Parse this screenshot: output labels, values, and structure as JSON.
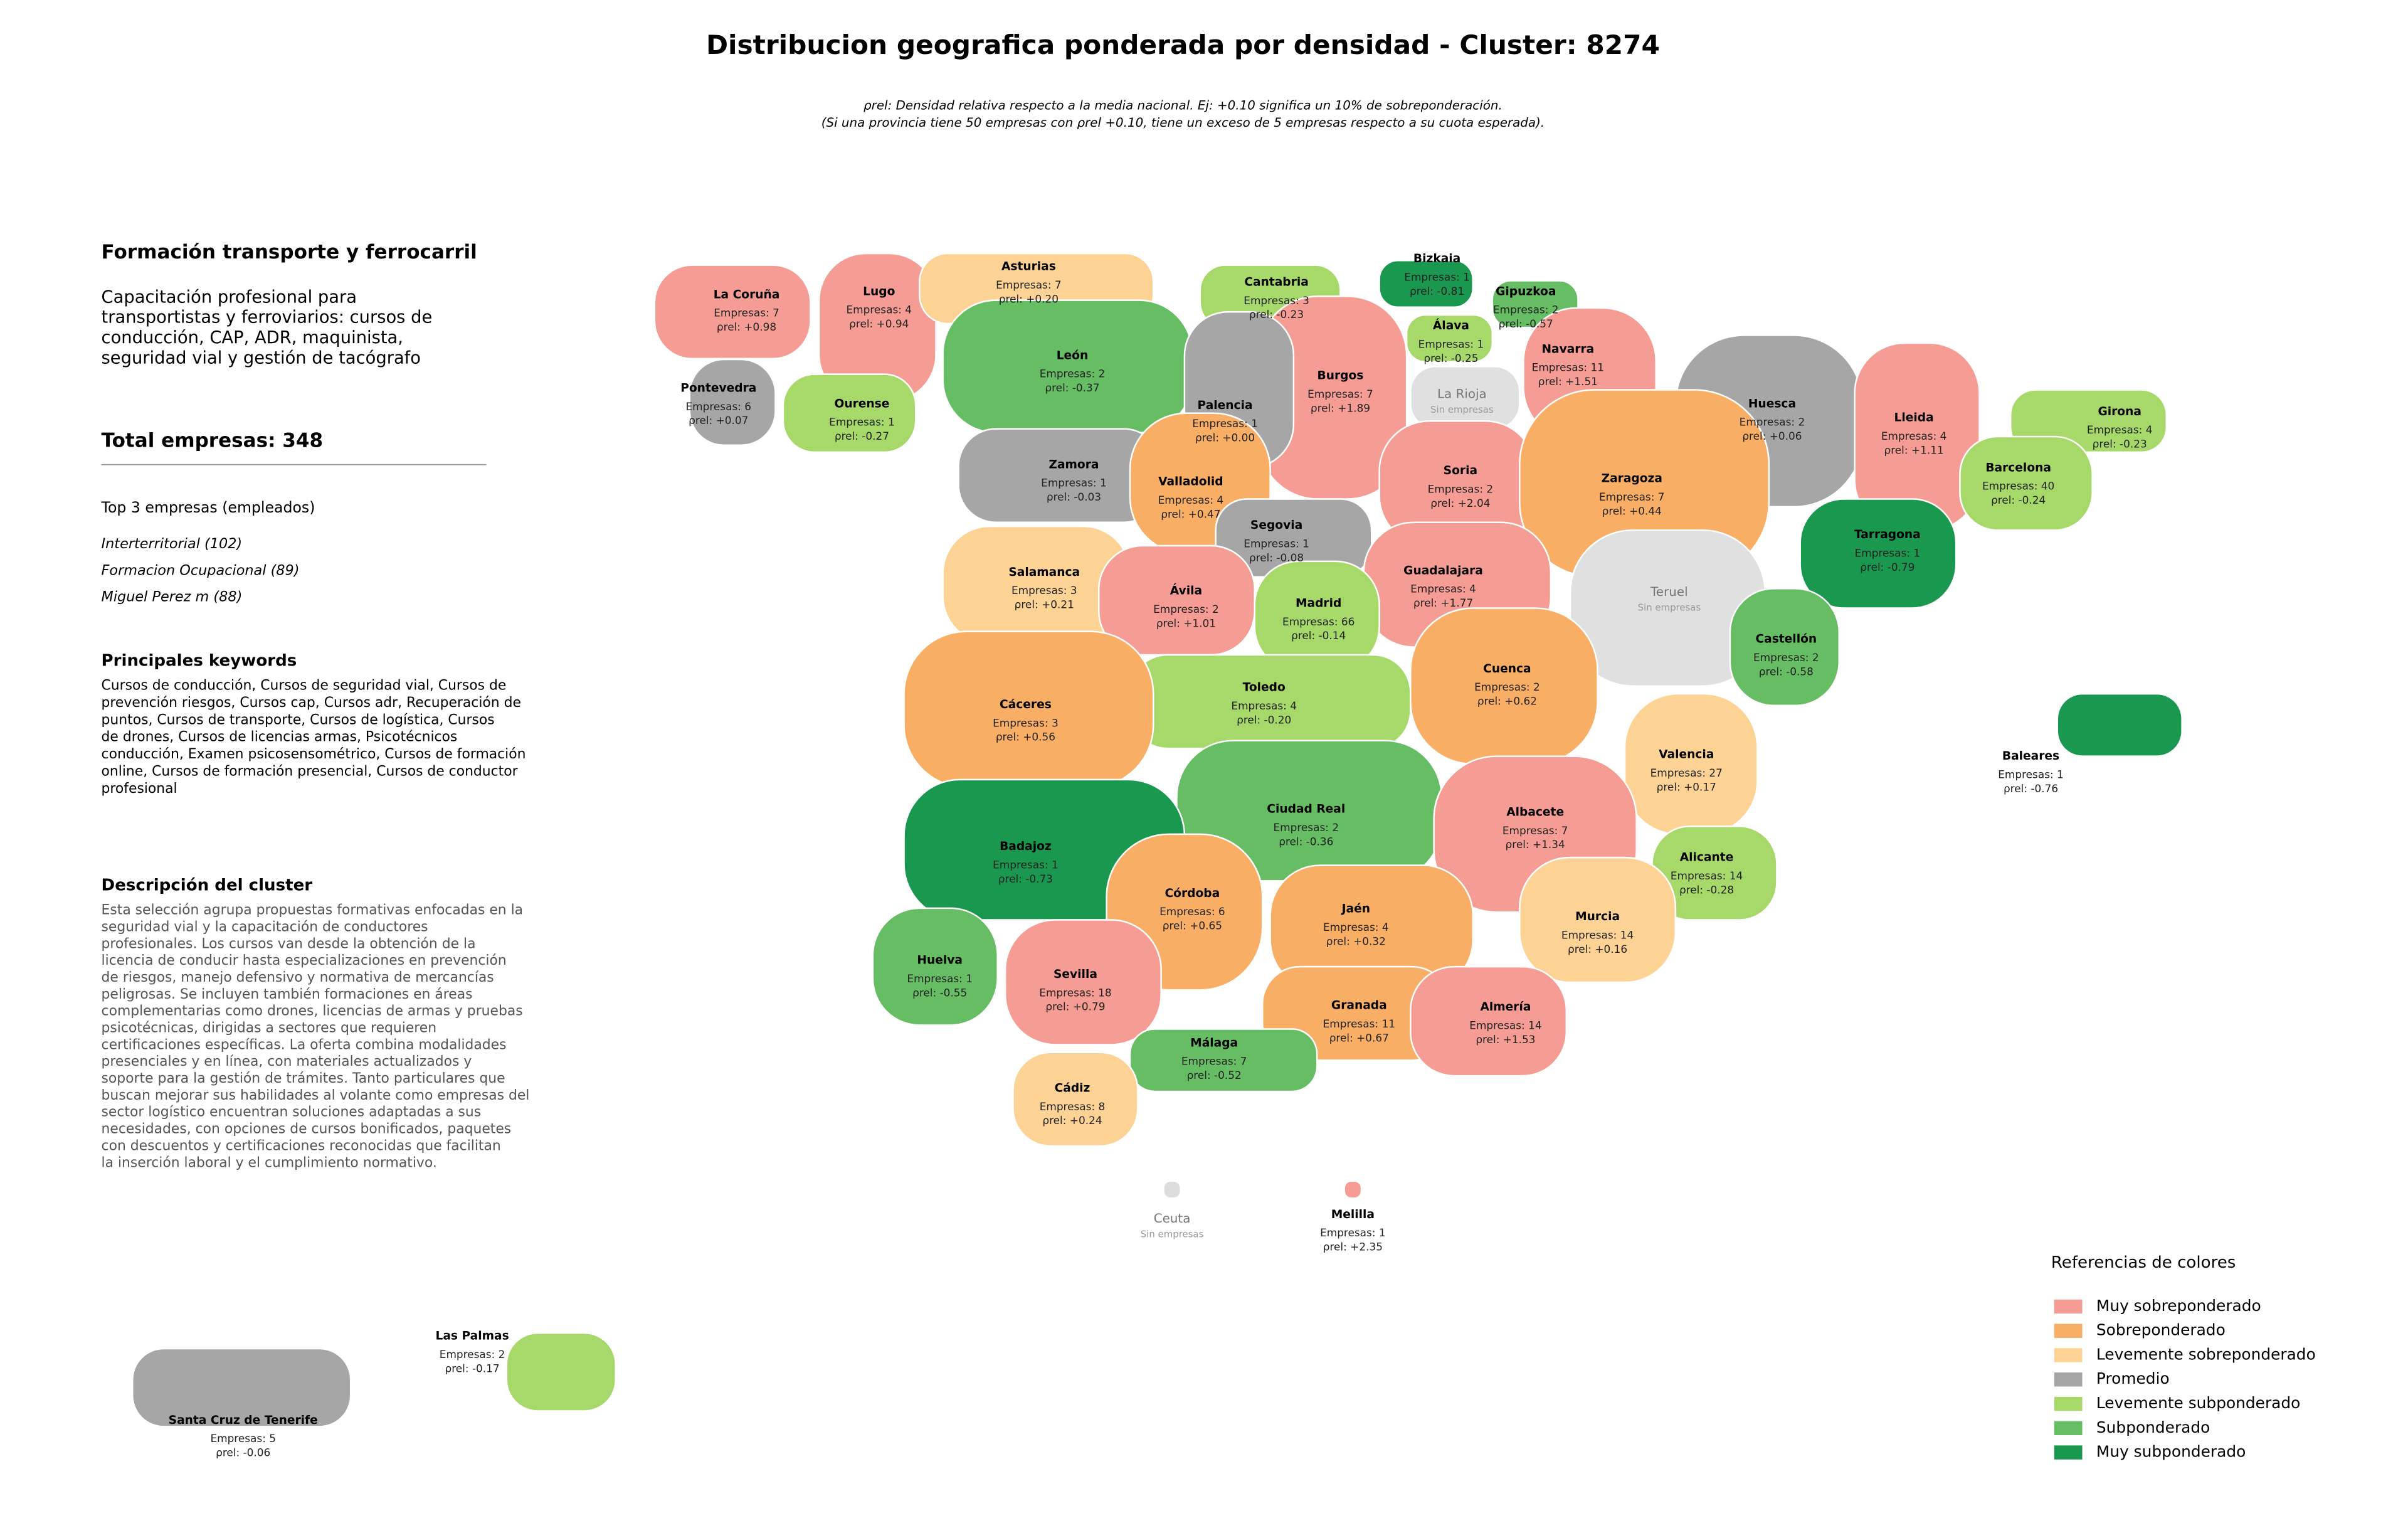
{
  "header": {
    "title": "Distribucion geografica ponderada por densidad - Cluster: 8274",
    "subtitle_lines": [
      "ρrel: Densidad relativa respecto a la media nacional. Ej: +0.10 significa un 10% de sobreponderación.",
      "(Si una provincia tiene 50 empresas con ρrel +0.10, tiene un exceso de 5 empresas respecto a su cuota esperada)."
    ]
  },
  "panel": {
    "cluster_name": "Formación transporte y ferrocarril",
    "cluster_summary_lines": [
      "Capacitación profesional para",
      "transportistas y ferroviarios: cursos de",
      "conducción, CAP, ADR, maquinista,",
      "seguridad vial y gestión de tacógrafo"
    ],
    "total": "Total empresas: 348",
    "top_title": "Top 3 empresas (empleados)",
    "top_items": [
      "Interterritorial (102)",
      "Formacion Ocupacional (89)",
      "Miguel Perez m (88)"
    ],
    "keywords_title": "Principales keywords",
    "keywords_lines": [
      "Cursos de conducción, Cursos de seguridad vial, Cursos de",
      "prevención riesgos, Cursos cap, Cursos adr, Recuperación de",
      "puntos, Cursos de transporte, Cursos de logística, Cursos",
      "de drones, Cursos de licencias armas, Psicotécnicos",
      "conducción, Examen psicosensométrico, Cursos de formación",
      "online, Cursos de formación presencial, Cursos de conductor",
      "profesional"
    ],
    "description_title": "Descripción del cluster",
    "description_lines": [
      "Esta selección agrupa propuestas formativas enfocadas en la",
      "seguridad vial y la capacitación de conductores",
      "profesionales. Los cursos van desde la obtención de la",
      "licencia de conducir hasta especializaciones en prevención",
      "de riesgos, manejo defensivo y normativa de mercancías",
      "peligrosas. Se incluyen también formaciones en áreas",
      "complementarias como drones, licencias de armas y pruebas",
      "psicotécnicas, dirigidas a sectores que requieren",
      "certificaciones específicas. La oferta combina modalidades",
      "presenciales y en línea, con materiales actualizados y",
      "soporte para la gestión de trámites. Tanto particulares que",
      "buscan mejorar sus habilidades al volante como empresas del",
      "sector logístico encuentran soluciones adaptadas a sus",
      "necesidades, con opciones de cursos bonificados, paquetes",
      "con descuentos y certificaciones reconocidas que facilitan",
      "la inserción laboral y el cumplimiento normativo."
    ]
  },
  "legend": {
    "title": "Referencias de colores",
    "items": [
      {
        "name": "Muy sobreponderado",
        "color": "#f59d94"
      },
      {
        "name": "Sobreponderado",
        "color": "#f9ae66"
      },
      {
        "name": "Levemente sobreponderado",
        "color": "#fdd395"
      },
      {
        "name": "Promedio",
        "color": "#a6a6a6"
      },
      {
        "name": "Levemente subponderado",
        "color": "#a6d96a"
      },
      {
        "name": "Subponderado",
        "color": "#66bd63"
      },
      {
        "name": "Muy subponderado",
        "color": "#1a9850"
      }
    ]
  },
  "provinces": [
    {
      "name": "La Coruña",
      "empresas": "Empresas: 7",
      "rho": "ρrel: +0.98",
      "color": "#f59d94"
    },
    {
      "name": "Lugo",
      "empresas": "Empresas: 4",
      "rho": "ρrel: +0.94",
      "color": "#f59d94"
    },
    {
      "name": "Asturias",
      "empresas": "Empresas: 7",
      "rho": "ρrel: +0.20",
      "color": "#fdd395"
    },
    {
      "name": "Cantabria",
      "empresas": "Empresas: 3",
      "rho": "ρrel: -0.23",
      "color": "#a6d96a"
    },
    {
      "name": "Bizkaia",
      "empresas": "Empresas: 1",
      "rho": "ρrel: -0.81",
      "color": "#1a9850"
    },
    {
      "name": "Gipuzkoa",
      "empresas": "Empresas: 2",
      "rho": "ρrel: -0.57",
      "color": "#66bd63"
    },
    {
      "name": "Álava",
      "empresas": "Empresas: 1",
      "rho": "ρrel: -0.25",
      "color": "#a6d96a"
    },
    {
      "name": "Navarra",
      "empresas": "Empresas: 11",
      "rho": "ρrel: +1.51",
      "color": "#f59d94"
    },
    {
      "name": "Pontevedra",
      "empresas": "Empresas: 6",
      "rho": "ρrel: +0.07",
      "color": "#a6a6a6"
    },
    {
      "name": "Ourense",
      "empresas": "Empresas: 1",
      "rho": "ρrel: -0.27",
      "color": "#a6d96a"
    },
    {
      "name": "León",
      "empresas": "Empresas: 2",
      "rho": "ρrel: -0.37",
      "color": "#66bd63"
    },
    {
      "name": "Burgos",
      "empresas": "Empresas: 7",
      "rho": "ρrel: +1.89",
      "color": "#f59d94"
    },
    {
      "name": "La Rioja",
      "note": "Sin empresas",
      "color": "#e0e0e0"
    },
    {
      "name": "Palencia",
      "empresas": "Empresas: 1",
      "rho": "ρrel: +0.00",
      "color": "#a6a6a6"
    },
    {
      "name": "Huesca",
      "empresas": "Empresas: 2",
      "rho": "ρrel: +0.06",
      "color": "#a6a6a6"
    },
    {
      "name": "Lleida",
      "empresas": "Empresas: 4",
      "rho": "ρrel: +1.11",
      "color": "#f59d94"
    },
    {
      "name": "Girona",
      "empresas": "Empresas: 4",
      "rho": "ρrel: -0.23",
      "color": "#a6d96a"
    },
    {
      "name": "Barcelona",
      "empresas": "Empresas: 40",
      "rho": "ρrel: -0.24",
      "color": "#a6d96a"
    },
    {
      "name": "Zamora",
      "empresas": "Empresas: 1",
      "rho": "ρrel: -0.03",
      "color": "#a6a6a6"
    },
    {
      "name": "Valladolid",
      "empresas": "Empresas: 4",
      "rho": "ρrel: +0.47",
      "color": "#f9ae66"
    },
    {
      "name": "Soria",
      "empresas": "Empresas: 2",
      "rho": "ρrel: +2.04",
      "color": "#f59d94"
    },
    {
      "name": "Zaragoza",
      "empresas": "Empresas: 7",
      "rho": "ρrel: +0.44",
      "color": "#f9ae66"
    },
    {
      "name": "Segovia",
      "empresas": "Empresas: 1",
      "rho": "ρrel: -0.08",
      "color": "#a6a6a6"
    },
    {
      "name": "Tarragona",
      "empresas": "Empresas: 1",
      "rho": "ρrel: -0.79",
      "color": "#1a9850"
    },
    {
      "name": "Salamanca",
      "empresas": "Empresas: 3",
      "rho": "ρrel: +0.21",
      "color": "#fdd395"
    },
    {
      "name": "Guadalajara",
      "empresas": "Empresas: 4",
      "rho": "ρrel: +1.77",
      "color": "#f59d94"
    },
    {
      "name": "Ávila",
      "empresas": "Empresas: 2",
      "rho": "ρrel: +1.01",
      "color": "#f59d94"
    },
    {
      "name": "Madrid",
      "empresas": "Empresas: 66",
      "rho": "ρrel: -0.14",
      "color": "#a6d96a"
    },
    {
      "name": "Teruel",
      "note": "Sin empresas",
      "color": "#e0e0e0"
    },
    {
      "name": "Castellón",
      "empresas": "Empresas: 2",
      "rho": "ρrel: -0.58",
      "color": "#66bd63"
    },
    {
      "name": "Cuenca",
      "empresas": "Empresas: 2",
      "rho": "ρrel: +0.62",
      "color": "#f9ae66"
    },
    {
      "name": "Toledo",
      "empresas": "Empresas: 4",
      "rho": "ρrel: -0.20",
      "color": "#a6d96a"
    },
    {
      "name": "Cáceres",
      "empresas": "Empresas: 3",
      "rho": "ρrel: +0.56",
      "color": "#f9ae66"
    },
    {
      "name": "Valencia",
      "empresas": "Empresas: 27",
      "rho": "ρrel: +0.17",
      "color": "#fdd395"
    },
    {
      "name": "Baleares",
      "empresas": "Empresas: 1",
      "rho": "ρrel: -0.76",
      "color": "#1a9850"
    },
    {
      "name": "Ciudad Real",
      "empresas": "Empresas: 2",
      "rho": "ρrel: -0.36",
      "color": "#66bd63"
    },
    {
      "name": "Albacete",
      "empresas": "Empresas: 7",
      "rho": "ρrel: +1.34",
      "color": "#f59d94"
    },
    {
      "name": "Badajoz",
      "empresas": "Empresas: 1",
      "rho": "ρrel: -0.73",
      "color": "#1a9850"
    },
    {
      "name": "Alicante",
      "empresas": "Empresas: 14",
      "rho": "ρrel: -0.28",
      "color": "#a6d96a"
    },
    {
      "name": "Córdoba",
      "empresas": "Empresas: 6",
      "rho": "ρrel: +0.65",
      "color": "#f9ae66"
    },
    {
      "name": "Jaén",
      "empresas": "Empresas: 4",
      "rho": "ρrel: +0.32",
      "color": "#f9ae66"
    },
    {
      "name": "Murcia",
      "empresas": "Empresas: 14",
      "rho": "ρrel: +0.16",
      "color": "#fdd395"
    },
    {
      "name": "Huelva",
      "empresas": "Empresas: 1",
      "rho": "ρrel: -0.55",
      "color": "#66bd63"
    },
    {
      "name": "Sevilla",
      "empresas": "Empresas: 18",
      "rho": "ρrel: +0.79",
      "color": "#f59d94"
    },
    {
      "name": "Granada",
      "empresas": "Empresas: 11",
      "rho": "ρrel: +0.67",
      "color": "#f9ae66"
    },
    {
      "name": "Almería",
      "empresas": "Empresas: 14",
      "rho": "ρrel: +1.53",
      "color": "#f59d94"
    },
    {
      "name": "Málaga",
      "empresas": "Empresas: 7",
      "rho": "ρrel: -0.52",
      "color": "#66bd63"
    },
    {
      "name": "Cádiz",
      "empresas": "Empresas: 8",
      "rho": "ρrel: +0.24",
      "color": "#fdd395"
    },
    {
      "name": "Ceuta",
      "note": "Sin empresas",
      "color": "#dddddd"
    },
    {
      "name": "Melilla",
      "empresas": "Empresas: 1",
      "rho": "ρrel: +2.35",
      "color": "#f59d94"
    },
    {
      "name": "Las Palmas",
      "empresas": "Empresas: 2",
      "rho": "ρrel: -0.17",
      "color": "#a6d96a"
    },
    {
      "name": "Santa Cruz de Tenerife",
      "empresas": "Empresas: 5",
      "rho": "ρrel: -0.06",
      "color": "#a6a6a6"
    }
  ]
}
